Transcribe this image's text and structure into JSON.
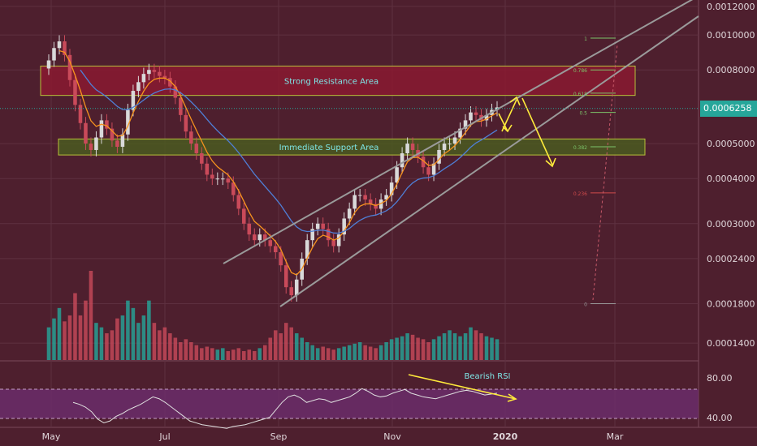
{
  "chart_data": {
    "type": "candlestick",
    "scale": "log",
    "price_axis_labels": [
      "0.0012000",
      "0.0010000",
      "0.0008000",
      "0.0006258",
      "0.0005000",
      "0.0004000",
      "0.0003000",
      "0.0002400",
      "0.0001800",
      "0.0001400"
    ],
    "price_axis_values": [
      0.0012,
      0.001,
      0.0008,
      0.0006258,
      0.0005,
      0.0004,
      0.0003,
      0.00024,
      0.00018,
      0.00014
    ],
    "last_price": "0.0006258",
    "last_price_value": 0.0006258,
    "time_axis_labels": [
      "May",
      "Jul",
      "Sep",
      "Nov",
      "2020",
      "Mar"
    ],
    "closes": [
      0.00085,
      0.00092,
      0.00096,
      0.00088,
      0.00075,
      0.00064,
      0.00057,
      0.0005,
      0.00048,
      0.00052,
      0.00058,
      0.00055,
      0.00051,
      0.00049,
      0.00053,
      0.00062,
      0.0007,
      0.00074,
      0.00078,
      0.0008,
      0.00079,
      0.00077,
      0.00076,
      0.00072,
      0.00067,
      0.0006,
      0.00054,
      0.0005,
      0.00047,
      0.00044,
      0.00041,
      0.0004,
      0.0004,
      0.0004,
      0.00039,
      0.00036,
      0.00033,
      0.0003,
      0.00028,
      0.00027,
      0.00028,
      0.00027,
      0.00026,
      0.00025,
      0.00023,
      0.0002,
      0.00019,
      0.00021,
      0.00024,
      0.00027,
      0.00029,
      0.0003,
      0.00029,
      0.00027,
      0.00026,
      0.00028,
      0.00031,
      0.00033,
      0.00036,
      0.00036,
      0.00035,
      0.00034,
      0.00033,
      0.00035,
      0.00036,
      0.00039,
      0.00043,
      0.00047,
      0.0005,
      0.00048,
      0.00046,
      0.00043,
      0.00041,
      0.00044,
      0.00048,
      0.0005,
      0.0005,
      0.00052,
      0.00055,
      0.00058,
      0.00061,
      0.0006,
      0.00058,
      0.0006,
      0.00062,
      0.00063
    ],
    "volumes": [
      22,
      28,
      35,
      26,
      30,
      45,
      30,
      40,
      60,
      25,
      22,
      18,
      20,
      28,
      30,
      40,
      35,
      25,
      30,
      40,
      25,
      20,
      22,
      18,
      15,
      12,
      14,
      12,
      10,
      8,
      9,
      8,
      7,
      8,
      6,
      7,
      8,
      6,
      7,
      6,
      8,
      10,
      15,
      20,
      18,
      25,
      22,
      18,
      15,
      12,
      10,
      8,
      9,
      8,
      7,
      8,
      9,
      10,
      11,
      12,
      10,
      9,
      8,
      10,
      12,
      14,
      15,
      16,
      18,
      17,
      15,
      14,
      12,
      14,
      16,
      18,
      20,
      18,
      16,
      18,
      22,
      20,
      18,
      16,
      15,
      14
    ],
    "rsi": [
      60,
      58,
      55,
      50,
      42,
      38,
      40,
      45,
      48,
      52,
      55,
      58,
      62,
      66,
      64,
      60,
      55,
      50,
      45,
      40,
      38,
      36,
      35,
      34,
      33,
      32,
      34,
      35,
      36,
      38,
      40,
      42,
      44,
      52,
      60,
      66,
      68,
      65,
      60,
      62,
      64,
      63,
      60,
      62,
      64,
      66,
      70,
      75,
      72,
      68,
      66,
      67,
      70,
      72,
      74,
      70,
      68,
      66,
      65,
      64,
      66,
      68,
      70,
      72,
      73,
      72,
      70,
      68,
      69,
      70
    ],
    "rsi_axis_labels": [
      "80.00",
      "40.00"
    ],
    "rsi_levels": [
      80,
      40
    ],
    "fib_levels": [
      "1",
      "0.786",
      "0.618",
      "0.5",
      "0.382",
      "0.236",
      "0"
    ],
    "fib_values": [
      0.00098,
      0.0008,
      0.00069,
      0.00061,
      0.00049,
      0.000365,
      0.00018
    ],
    "annotations": {
      "resistance": "Strong Resistance Area",
      "support": "Immediate Support Area",
      "rsi_note": "Bearish RSI"
    },
    "zones": {
      "resistance": [
        0.00068,
        0.00082
      ],
      "support": [
        0.000465,
        0.000515
      ]
    },
    "colors": {
      "background": "#4e1f2e",
      "up": "#d9d9d9",
      "down": "#c94a5a",
      "ema_fast": "#f7931e",
      "ema_slow": "#4f7fd6",
      "volume": "#26a69a",
      "volume_down": "#c94a5a",
      "resistance_fill": "#8a1a30",
      "support_fill": "#4a5a20",
      "annotation_text": "#7ee6e6",
      "arrow": "#ffeb3b",
      "trendline": "#9a9a9a",
      "rsi_band": "#6b2d6a",
      "rsi_line": "#e0e0e0"
    }
  }
}
